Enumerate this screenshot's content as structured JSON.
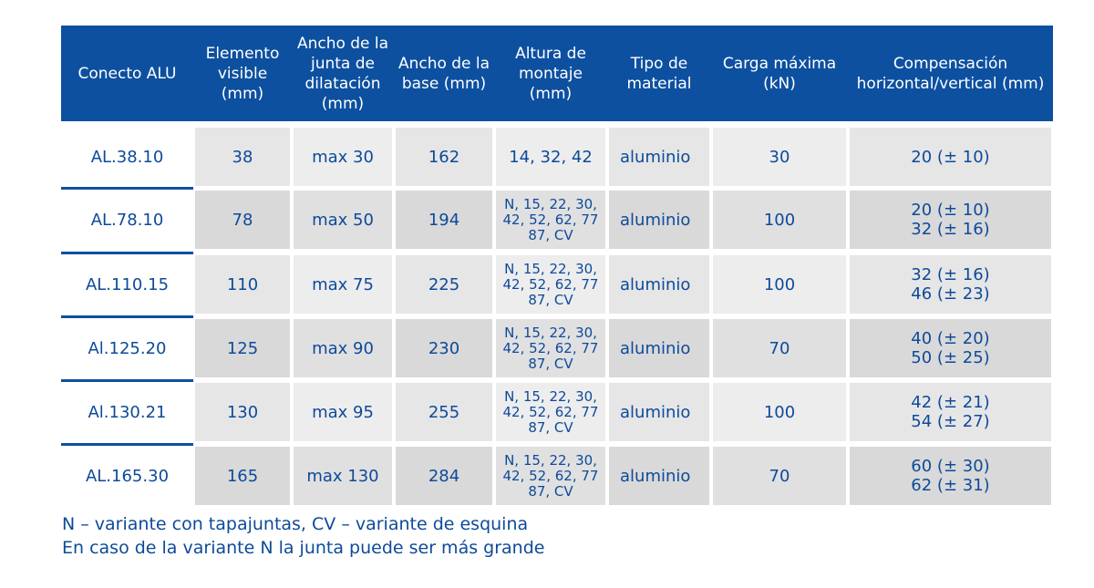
{
  "table": {
    "header": [
      "Conecto ALU",
      "Elemento visible (mm)",
      "Ancho de la junta de dilatación (mm)",
      "Ancho de la base (mm)",
      "Altura de montaje (mm)",
      "Tipo de material",
      "Carga máxima (kN)",
      "Compensación horizontal/vertical (mm)"
    ],
    "rows": [
      [
        "AL.38.10",
        "38",
        "max 30",
        "162",
        "14, 32, 42",
        "aluminio",
        "30",
        "20 (± 10)"
      ],
      [
        "AL.78.10",
        "78",
        "max 50",
        "194",
        "N, 15, 22, 30,\n42, 52, 62, 77\n87, CV",
        "aluminio",
        "100",
        "20 (± 10)\n32 (± 16)"
      ],
      [
        "AL.110.15",
        "110",
        "max 75",
        "225",
        "N, 15, 22, 30,\n42, 52, 62, 77\n87, CV",
        "aluminio",
        "100",
        "32 (± 16)\n46 (± 23)"
      ],
      [
        "Al.125.20",
        "125",
        "max 90",
        "230",
        "N, 15, 22, 30,\n42, 52, 62, 77\n87, CV",
        "aluminio",
        "70",
        "40 (± 20)\n50 (± 25)"
      ],
      [
        "Al.130.21",
        "130",
        "max 95",
        "255",
        "N, 15, 22, 30,\n42, 52, 62, 77\n87, CV",
        "aluminio",
        "100",
        "42 (± 21)\n54 (± 27)"
      ],
      [
        "AL.165.30",
        "165",
        "max 130",
        "284",
        "N, 15, 22, 30,\n42, 52, 62, 77\n87, CV",
        "aluminio",
        "70",
        "60 (± 30)\n62 (± 31)"
      ]
    ]
  },
  "notes": [
    "N – variante con tapajuntas, CV – variante de esquina",
    "En caso de la variante N la junta puede ser más grande"
  ]
}
